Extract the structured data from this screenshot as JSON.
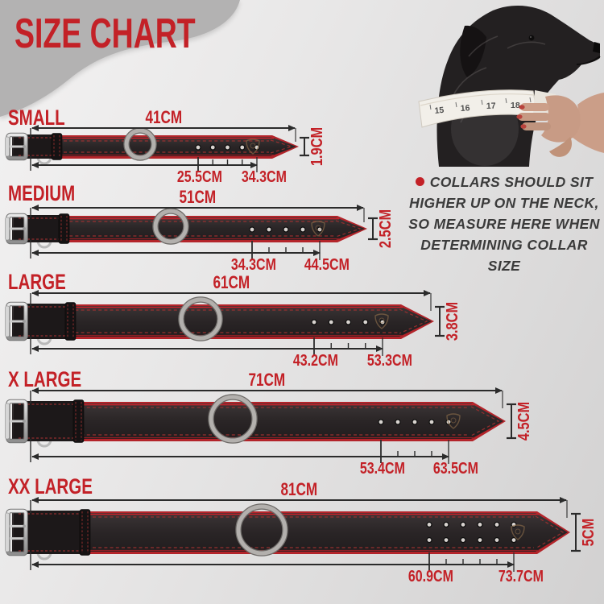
{
  "title": "SIZE CHART",
  "note": {
    "lines": [
      "COLLARS SHOULD SIT",
      "HIGHER UP ON THE NECK,",
      "SO MEASURE HERE WHEN",
      "DETERMINING COLLAR",
      "SIZE"
    ]
  },
  "photo": {
    "tape_numbers": [
      "15",
      "16",
      "17",
      "18"
    ]
  },
  "rows": [
    {
      "size": "SMALL",
      "length": "41CM",
      "width": "1.9CM",
      "first_hole": "25.5CM",
      "last_hole": "34.3CM"
    },
    {
      "size": "MEDIUM",
      "length": "51CM",
      "width": "2.5CM",
      "first_hole": "34.3CM",
      "last_hole": "44.5CM"
    },
    {
      "size": "LARGE",
      "length": "61CM",
      "width": "3.8CM",
      "first_hole": "43.2CM",
      "last_hole": "53.3CM"
    },
    {
      "size": "X LARGE",
      "length": "71CM",
      "width": "4.5CM",
      "first_hole": "53.4CM",
      "last_hole": "63.5CM"
    },
    {
      "size": "XX LARGE",
      "length": "81CM",
      "width": "5CM",
      "first_hole": "60.9CM",
      "last_hole": "73.7CM"
    }
  ],
  "colors": {
    "accent_red": "#c32127",
    "collar_black": "#292425",
    "lining_red": "#b3242a",
    "stitch_red": "#9e3030",
    "metal_silver": "#bdbdbd",
    "dimension_line": "#2b2b2b",
    "note_text": "#3b3b3b",
    "blob_gray": "#b3b2b2"
  }
}
